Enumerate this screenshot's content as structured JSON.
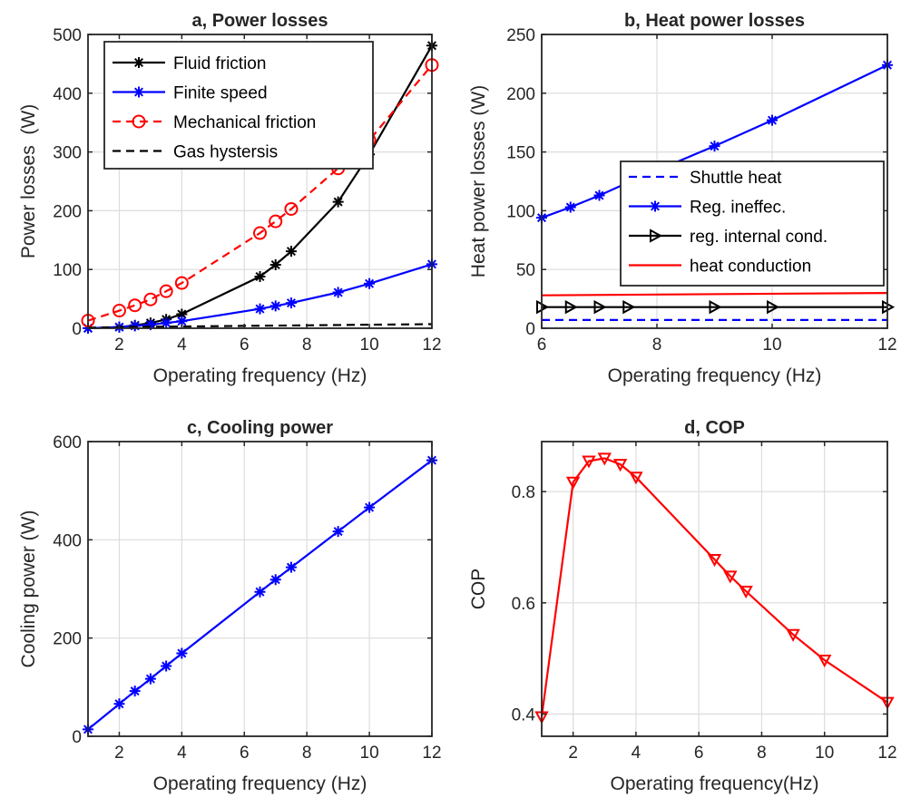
{
  "chart_data": [
    {
      "type": "line",
      "title": "a, Power losses",
      "xlabel": "Operating frequency (Hz)",
      "ylabel": "Power losses  (W)",
      "xlim": [
        1,
        12
      ],
      "ylim": [
        0,
        500
      ],
      "xticks": [
        2,
        4,
        6,
        8,
        10,
        12
      ],
      "yticks": [
        0,
        100,
        200,
        300,
        400,
        500
      ],
      "grid": true,
      "legend_position": "top-left",
      "series": [
        {
          "name": "Fluid friction",
          "color": "#000000",
          "style": "solid",
          "marker": "star",
          "x": [
            1,
            2,
            2.5,
            3,
            3.5,
            4,
            6.5,
            7,
            7.5,
            9,
            10,
            12
          ],
          "y": [
            0,
            2,
            5,
            9,
            15,
            24,
            88,
            108,
            131,
            215,
            296,
            481
          ]
        },
        {
          "name": "Finite speed",
          "color": "#0000ff",
          "style": "solid",
          "marker": "star",
          "x": [
            1,
            2,
            2.5,
            3,
            3.5,
            4,
            6.5,
            7,
            7.5,
            9,
            10,
            12
          ],
          "y": [
            0,
            2,
            4,
            6,
            9,
            12,
            33,
            38,
            43,
            61,
            76,
            109
          ]
        },
        {
          "name": "Mechanical friction",
          "color": "#ff0000",
          "style": "dashed",
          "marker": "circle",
          "x": [
            1,
            2,
            2.5,
            3,
            3.5,
            4,
            6.5,
            7,
            7.5,
            9,
            10,
            12
          ],
          "y": [
            13,
            30,
            39,
            49,
            63,
            77,
            162,
            182,
            203,
            272,
            320,
            448
          ]
        },
        {
          "name": "Gas hystersis",
          "color": "#000000",
          "style": "dashed",
          "marker": "none",
          "x": [
            1,
            2,
            4,
            6,
            8,
            10,
            12
          ],
          "y": [
            1,
            2,
            3,
            4,
            5,
            6,
            7
          ]
        }
      ]
    },
    {
      "type": "line",
      "title": "b, Heat power losses",
      "xlabel": "Operating frequency (Hz)",
      "ylabel": "Heat power losses (W)",
      "xlim": [
        6,
        12
      ],
      "ylim": [
        0,
        250
      ],
      "xticks": [
        6,
        8,
        10,
        12
      ],
      "yticks": [
        0,
        50,
        100,
        150,
        200,
        250
      ],
      "grid": true,
      "legend_position": "right",
      "series": [
        {
          "name": "Shuttle heat",
          "color": "#0000ff",
          "style": "dashed",
          "marker": "none",
          "x": [
            6,
            12
          ],
          "y": [
            7,
            7
          ]
        },
        {
          "name": "Reg. ineffec.",
          "color": "#0000ff",
          "style": "solid",
          "marker": "star",
          "x": [
            6,
            6.5,
            7,
            7.5,
            9,
            10,
            12
          ],
          "y": [
            94,
            103,
            113,
            124,
            155,
            177,
            224
          ]
        },
        {
          "name": "reg. internal cond.",
          "color": "#000000",
          "style": "solid",
          "marker": "triangle-right",
          "x": [
            6,
            6.5,
            7,
            7.5,
            9,
            10,
            12
          ],
          "y": [
            18,
            18,
            18,
            18,
            18,
            18,
            18
          ]
        },
        {
          "name": "heat conduction",
          "color": "#ff0000",
          "style": "solid",
          "marker": "none",
          "x": [
            6,
            12
          ],
          "y": [
            28,
            30
          ]
        }
      ]
    },
    {
      "type": "line",
      "title": "c, Cooling power",
      "xlabel": "Operating frequency (Hz)",
      "ylabel": "Cooling power (W)",
      "xlim": [
        1,
        12
      ],
      "ylim": [
        0,
        600
      ],
      "xticks": [
        2,
        4,
        6,
        8,
        10,
        12
      ],
      "yticks": [
        0,
        200,
        400,
        600
      ],
      "grid": true,
      "series": [
        {
          "color": "#0000ff",
          "style": "solid",
          "marker": "star",
          "x": [
            1,
            2,
            2.5,
            3,
            3.5,
            4,
            6.5,
            7,
            7.5,
            9,
            10,
            12
          ],
          "y": [
            14,
            66,
            92,
            117,
            143,
            169,
            294,
            319,
            344,
            417,
            466,
            562
          ]
        }
      ]
    },
    {
      "type": "line",
      "title": "d, COP",
      "xlabel": "Operating frequency(Hz)",
      "ylabel": "COP",
      "xlim": [
        1,
        12
      ],
      "ylim": [
        0.36,
        0.89
      ],
      "xticks": [
        2,
        4,
        6,
        8,
        10,
        12
      ],
      "yticks": [
        0.4,
        0.6,
        0.8
      ],
      "grid": true,
      "series": [
        {
          "color": "#ff0000",
          "style": "solid",
          "marker": "triangle-down",
          "x": [
            1,
            2,
            2.5,
            3,
            3.5,
            4,
            6.5,
            7,
            7.5,
            9,
            10,
            12
          ],
          "y": [
            0.395,
            0.817,
            0.855,
            0.86,
            0.849,
            0.826,
            0.678,
            0.648,
            0.621,
            0.543,
            0.497,
            0.421
          ]
        }
      ]
    }
  ]
}
